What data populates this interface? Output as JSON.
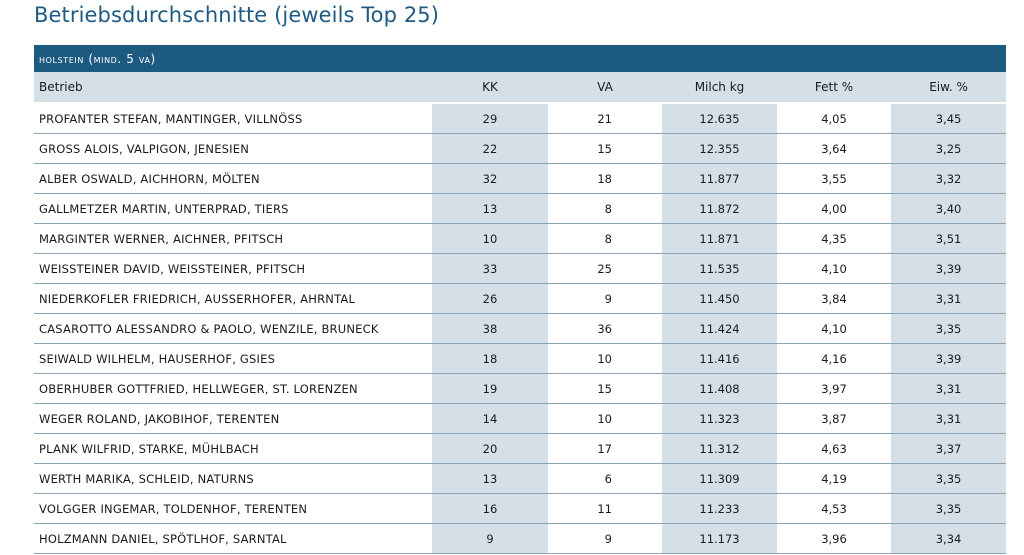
{
  "title": "Betriebsdurchschnitte (jeweils Top 25)",
  "section": "holstein (mind. 5 va)",
  "columns": [
    "Betrieb",
    "KK",
    "VA",
    "Milch kg",
    "Fett %",
    "Eiw. %"
  ],
  "rows": [
    [
      "PROFANTER STEFAN, MANTINGER, VILLNÖSS",
      "29",
      "21",
      "12.635",
      "4,05",
      "3,45"
    ],
    [
      "GROSS ALOIS, VALPIGON, JENESIEN",
      "22",
      "15",
      "12.355",
      "3,64",
      "3,25"
    ],
    [
      "ALBER OSWALD, AICHHORN, MÖLTEN",
      "32",
      "18",
      "11.877",
      "3,55",
      "3,32"
    ],
    [
      "GALLMETZER MARTIN, UNTERPRAD, TIERS",
      "13",
      "8",
      "11.872",
      "4,00",
      "3,40"
    ],
    [
      "MARGINTER WERNER, AICHNER, PFITSCH",
      "10",
      "8",
      "11.871",
      "4,35",
      "3,51"
    ],
    [
      "WEISSTEINER DAVID, WEISSTEINER, PFITSCH",
      "33",
      "25",
      "11.535",
      "4,10",
      "3,39"
    ],
    [
      "NIEDERKOFLER FRIEDRICH, AUSSERHOFER, AHRNTAL",
      "26",
      "9",
      "11.450",
      "3,84",
      "3,31"
    ],
    [
      "CASAROTTO ALESSANDRO & PAOLO, WENZILE, BRUNECK",
      "38",
      "36",
      "11.424",
      "4,10",
      "3,35"
    ],
    [
      "SEIWALD WILHELM, HAUSERHOF, GSIES",
      "18",
      "10",
      "11.416",
      "4,16",
      "3,39"
    ],
    [
      "OBERHUBER GOTTFRIED, HELLWEGER, ST. LORENZEN",
      "19",
      "15",
      "11.408",
      "3,97",
      "3,31"
    ],
    [
      "WEGER ROLAND, JAKOBIHOF, TERENTEN",
      "14",
      "10",
      "11.323",
      "3,87",
      "3,31"
    ],
    [
      "PLANK WILFRID, STARKE, MÜHLBACH",
      "20",
      "17",
      "11.312",
      "4,63",
      "3,37"
    ],
    [
      "WERTH MARIKA, SCHLEID, NATURNS",
      "13",
      "6",
      "11.309",
      "4,19",
      "3,35"
    ],
    [
      "VOLGGER INGEMAR, TOLDENHOF, TERENTEN",
      "16",
      "11",
      "11.233",
      "4,53",
      "3,35"
    ],
    [
      "HOLZMANN DANIEL, SPÖTLHOF, SARNTAL",
      "9",
      "9",
      "11.173",
      "3,96",
      "3,34"
    ]
  ]
}
